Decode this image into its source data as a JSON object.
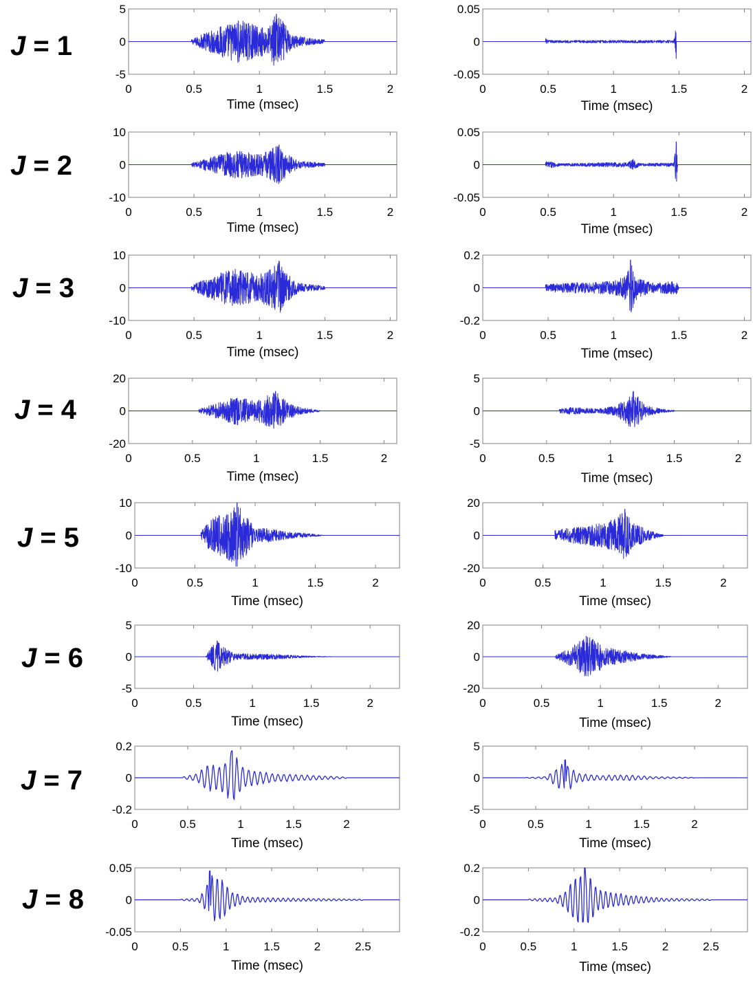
{
  "figure": {
    "line_color": "#2a2ad8",
    "axis_color": "#808080",
    "background": "#ffffff"
  },
  "chart_data": [
    {
      "type": "line",
      "row_label": "J = 1",
      "column": "left",
      "xlabel": "Time (msec)",
      "xlim": [
        0,
        2.05
      ],
      "ylim": [
        -5,
        5
      ],
      "x_ticks": [
        "0",
        "0.5",
        "1",
        "1.5",
        "2"
      ],
      "y_ticks": [
        "5",
        "0",
        "-5"
      ],
      "waveform": {
        "start": 0.48,
        "end": 1.5,
        "peak_time": 1.13,
        "peak_amplitude": 4.2,
        "envelope": [
          [
            0.48,
            0.3
          ],
          [
            0.55,
            1.0
          ],
          [
            0.7,
            2.4
          ],
          [
            0.85,
            3.4
          ],
          [
            1.0,
            2.3
          ],
          [
            1.07,
            2.2
          ],
          [
            1.12,
            4.2
          ],
          [
            1.18,
            3.2
          ],
          [
            1.25,
            1.1
          ],
          [
            1.4,
            0.45
          ],
          [
            1.5,
            0.3
          ]
        ]
      }
    },
    {
      "type": "line",
      "row_label": "J = 1",
      "column": "right",
      "xlabel": "Time (msec)",
      "xlim": [
        0,
        2.05
      ],
      "ylim": [
        -0.05,
        0.05
      ],
      "x_ticks": [
        "0",
        "0.5",
        "1",
        "1.5",
        "2"
      ],
      "y_ticks": [
        "0.05",
        "0",
        "-0.05"
      ],
      "waveform": {
        "start": 0.48,
        "end": 1.48,
        "peak_time": 1.48,
        "peak_amplitude": -0.026,
        "envelope": [
          [
            0.48,
            0.006
          ],
          [
            0.5,
            0.002
          ],
          [
            1.46,
            0.002
          ],
          [
            1.48,
            0.026
          ],
          [
            1.49,
            0.0
          ]
        ]
      }
    },
    {
      "type": "line",
      "row_label": "J = 2",
      "column": "left",
      "xlabel": "Time (msec)",
      "xlim": [
        0,
        2.05
      ],
      "ylim": [
        -10,
        10
      ],
      "x_ticks": [
        "0",
        "0.5",
        "1",
        "1.5",
        "2"
      ],
      "y_ticks": [
        "10",
        "0",
        "-10"
      ],
      "waveform": {
        "start": 0.48,
        "end": 1.5,
        "peak_time": 1.15,
        "peak_amplitude": 6.0,
        "envelope": [
          [
            0.48,
            0.5
          ],
          [
            0.6,
            2.0
          ],
          [
            0.8,
            4.5
          ],
          [
            1.0,
            3.2
          ],
          [
            1.15,
            6.0
          ],
          [
            1.22,
            3.0
          ],
          [
            1.3,
            1.2
          ],
          [
            1.5,
            0.5
          ]
        ]
      }
    },
    {
      "type": "line",
      "row_label": "J = 2",
      "column": "right",
      "xlabel": "Time (msec)",
      "xlim": [
        0,
        2.05
      ],
      "ylim": [
        -0.05,
        0.05
      ],
      "x_ticks": [
        "0",
        "0.5",
        "1",
        "1.5",
        "2"
      ],
      "y_ticks": [
        "0.05",
        "0",
        "-0.05"
      ],
      "waveform": {
        "start": 0.48,
        "end": 1.5,
        "peak_time": 1.48,
        "peak_amplitude": 0.035,
        "envelope": [
          [
            0.48,
            0.006
          ],
          [
            0.6,
            0.002
          ],
          [
            1.1,
            0.004
          ],
          [
            1.15,
            0.009
          ],
          [
            1.2,
            0.002
          ],
          [
            1.46,
            0.003
          ],
          [
            1.48,
            0.035
          ],
          [
            1.49,
            0.0
          ]
        ]
      }
    },
    {
      "type": "line",
      "row_label": "J = 3",
      "column": "left",
      "xlabel": "Time (msec)",
      "xlim": [
        0,
        2.05
      ],
      "ylim": [
        -10,
        10
      ],
      "x_ticks": [
        "0",
        "0.5",
        "1",
        "1.5",
        "2"
      ],
      "y_ticks": [
        "10",
        "0",
        "-10"
      ],
      "waveform": {
        "start": 0.48,
        "end": 1.5,
        "peak_time": 1.15,
        "peak_amplitude": 8.2,
        "envelope": [
          [
            0.48,
            0.8
          ],
          [
            0.6,
            3.0
          ],
          [
            0.8,
            6.0
          ],
          [
            1.0,
            4.0
          ],
          [
            1.15,
            8.2
          ],
          [
            1.22,
            4.0
          ],
          [
            1.3,
            1.5
          ],
          [
            1.5,
            0.5
          ]
        ]
      }
    },
    {
      "type": "line",
      "row_label": "J = 3",
      "column": "right",
      "xlabel": "Time (msec)",
      "xlim": [
        0,
        2.05
      ],
      "ylim": [
        -0.2,
        0.2
      ],
      "x_ticks": [
        "0",
        "0.5",
        "1",
        "1.5",
        "2"
      ],
      "y_ticks": [
        "0.2",
        "0",
        "-0.2"
      ],
      "waveform": {
        "start": 0.48,
        "end": 1.5,
        "peak_time": 1.13,
        "peak_amplitude": 0.17,
        "envelope": [
          [
            0.48,
            0.02
          ],
          [
            0.6,
            0.03
          ],
          [
            1.0,
            0.04
          ],
          [
            1.1,
            0.08
          ],
          [
            1.13,
            0.17
          ],
          [
            1.18,
            0.06
          ],
          [
            1.3,
            0.03
          ],
          [
            1.48,
            0.04
          ],
          [
            1.5,
            0.0
          ]
        ]
      }
    },
    {
      "type": "line",
      "row_label": "J = 4",
      "column": "left",
      "xlabel": "Time (msec)",
      "xlim": [
        0,
        2.1
      ],
      "ylim": [
        -20,
        20
      ],
      "x_ticks": [
        "0",
        "0.5",
        "1",
        "1.5",
        "2"
      ],
      "y_ticks": [
        "20",
        "0",
        "-20"
      ],
      "waveform": {
        "start": 0.55,
        "end": 1.5,
        "peak_time": 1.15,
        "peak_amplitude": 12,
        "envelope": [
          [
            0.55,
            1.0
          ],
          [
            0.7,
            5.0
          ],
          [
            0.85,
            9.0
          ],
          [
            1.0,
            6.0
          ],
          [
            1.15,
            12.0
          ],
          [
            1.25,
            5.0
          ],
          [
            1.35,
            2.0
          ],
          [
            1.5,
            0.5
          ]
        ]
      }
    },
    {
      "type": "line",
      "row_label": "J = 4",
      "column": "right",
      "xlabel": "Time (msec)",
      "xlim": [
        0,
        2.1
      ],
      "ylim": [
        -5,
        5
      ],
      "x_ticks": [
        "0",
        "0.5",
        "1",
        "1.5",
        "2"
      ],
      "y_ticks": [
        "5",
        "0",
        "-5"
      ],
      "waveform": {
        "start": 0.6,
        "end": 1.5,
        "peak_time": 1.18,
        "peak_amplitude": 3.0,
        "envelope": [
          [
            0.6,
            0.3
          ],
          [
            0.7,
            0.6
          ],
          [
            0.9,
            0.3
          ],
          [
            1.05,
            0.8
          ],
          [
            1.18,
            3.0
          ],
          [
            1.28,
            0.8
          ],
          [
            1.4,
            0.3
          ],
          [
            1.5,
            0.1
          ]
        ]
      }
    },
    {
      "type": "line",
      "row_label": "J = 5",
      "column": "left",
      "xlabel": "Time (msec)",
      "xlim": [
        0,
        2.2
      ],
      "ylim": [
        -10,
        10
      ],
      "x_ticks": [
        "0",
        "0.5",
        "1",
        "1.5",
        "2"
      ],
      "y_ticks": [
        "10",
        "0",
        "-10"
      ],
      "waveform": {
        "start": 0.55,
        "end": 1.55,
        "peak_time": 0.85,
        "peak_amplitude": 10,
        "envelope": [
          [
            0.55,
            1.0
          ],
          [
            0.62,
            5.0
          ],
          [
            0.8,
            8.0
          ],
          [
            0.85,
            10.0
          ],
          [
            0.95,
            5.0
          ],
          [
            1.0,
            2.0
          ],
          [
            1.1,
            2.2
          ],
          [
            1.3,
            1.0
          ],
          [
            1.55,
            0.2
          ]
        ]
      }
    },
    {
      "type": "line",
      "row_label": "J = 5",
      "column": "right",
      "xlabel": "Time (msec)",
      "xlim": [
        0,
        2.2
      ],
      "ylim": [
        -20,
        20
      ],
      "x_ticks": [
        "0",
        "0.5",
        "1",
        "1.5",
        "2"
      ],
      "y_ticks": [
        "20",
        "0",
        "-20"
      ],
      "waveform": {
        "start": 0.6,
        "end": 1.5,
        "peak_time": 1.18,
        "peak_amplitude": 16,
        "envelope": [
          [
            0.6,
            3.0
          ],
          [
            0.75,
            5.0
          ],
          [
            0.95,
            7.0
          ],
          [
            1.1,
            10.0
          ],
          [
            1.18,
            16.0
          ],
          [
            1.25,
            8.0
          ],
          [
            1.35,
            4.0
          ],
          [
            1.5,
            0.5
          ]
        ]
      }
    },
    {
      "type": "line",
      "row_label": "J = 6",
      "column": "left",
      "xlabel": "Time (msec)",
      "xlim": [
        0,
        2.25
      ],
      "ylim": [
        -5,
        5
      ],
      "x_ticks": [
        "0",
        "0.5",
        "1",
        "1.5",
        "2"
      ],
      "y_ticks": [
        "5",
        "0",
        "-5"
      ],
      "waveform": {
        "start": 0.6,
        "end": 1.7,
        "peak_time": 0.7,
        "peak_amplitude": 2.5,
        "envelope": [
          [
            0.6,
            0.0
          ],
          [
            0.65,
            1.6
          ],
          [
            0.7,
            2.5
          ],
          [
            0.75,
            1.6
          ],
          [
            0.85,
            0.5
          ],
          [
            1.2,
            0.4
          ],
          [
            1.5,
            0.1
          ],
          [
            1.7,
            0.0
          ]
        ]
      }
    },
    {
      "type": "line",
      "row_label": "J = 6",
      "column": "right",
      "xlabel": "Time (msec)",
      "xlim": [
        0,
        2.25
      ],
      "ylim": [
        -20,
        20
      ],
      "x_ticks": [
        "0",
        "0.5",
        "1",
        "1.5",
        "2"
      ],
      "y_ticks": [
        "20",
        "0",
        "-20"
      ],
      "waveform": {
        "start": 0.62,
        "end": 1.6,
        "peak_time": 0.88,
        "peak_amplitude": 13,
        "envelope": [
          [
            0.62,
            1.0
          ],
          [
            0.75,
            6.0
          ],
          [
            0.88,
            13.0
          ],
          [
            0.97,
            10.0
          ],
          [
            1.05,
            6.0
          ],
          [
            1.2,
            4.0
          ],
          [
            1.35,
            2.0
          ],
          [
            1.6,
            0.2
          ]
        ]
      }
    },
    {
      "type": "line",
      "row_label": "J = 7",
      "column": "left",
      "xlabel": "Time (msec)",
      "xlim": [
        0,
        2.5
      ],
      "ylim": [
        -0.2,
        0.2
      ],
      "x_ticks": [
        "0",
        "0.5",
        "1",
        "1.5",
        "2"
      ],
      "y_ticks": [
        "0.2",
        "0",
        "-0.2"
      ],
      "waveform": {
        "start": 0.45,
        "end": 2.0,
        "peak_time": 0.92,
        "peak_amplitude": 0.17,
        "envelope": [
          [
            0.45,
            0.005
          ],
          [
            0.6,
            0.03
          ],
          [
            0.68,
            0.09
          ],
          [
            0.8,
            0.08
          ],
          [
            0.92,
            0.17
          ],
          [
            1.05,
            0.06
          ],
          [
            1.3,
            0.03
          ],
          [
            1.7,
            0.015
          ],
          [
            2.0,
            0.005
          ]
        ]
      }
    },
    {
      "type": "line",
      "row_label": "J = 7",
      "column": "right",
      "xlabel": "Time (msec)",
      "xlim": [
        0,
        2.5
      ],
      "ylim": [
        -5,
        5
      ],
      "x_ticks": [
        "0",
        "0.5",
        "1",
        "1.5",
        "2"
      ],
      "y_ticks": [
        "5",
        "0",
        "-5"
      ],
      "waveform": {
        "start": 0.4,
        "end": 2.0,
        "peak_time": 0.78,
        "peak_amplitude": 2.8,
        "envelope": [
          [
            0.4,
            0.05
          ],
          [
            0.6,
            0.2
          ],
          [
            0.78,
            2.8
          ],
          [
            0.88,
            0.8
          ],
          [
            1.1,
            0.4
          ],
          [
            1.35,
            0.5
          ],
          [
            1.6,
            0.2
          ],
          [
            2.0,
            0.05
          ]
        ]
      }
    },
    {
      "type": "line",
      "row_label": "J = 8",
      "column": "left",
      "xlabel": "Time (msec)",
      "xlim": [
        0,
        2.9
      ],
      "ylim": [
        -0.05,
        0.05
      ],
      "x_ticks": [
        "0",
        "0.5",
        "1",
        "1.5",
        "2",
        "2.5"
      ],
      "y_ticks": [
        "0.05",
        "0",
        "-0.05"
      ],
      "waveform": {
        "start": 0.5,
        "end": 2.5,
        "peak_time": 0.82,
        "peak_amplitude": 0.045,
        "envelope": [
          [
            0.5,
            0.001
          ],
          [
            0.7,
            0.003
          ],
          [
            0.76,
            0.015
          ],
          [
            0.82,
            0.045
          ],
          [
            0.95,
            0.035
          ],
          [
            1.05,
            0.015
          ],
          [
            1.2,
            0.005
          ],
          [
            1.6,
            0.003
          ],
          [
            2.5,
            0.001
          ]
        ]
      }
    },
    {
      "type": "line",
      "row_label": "J = 8",
      "column": "right",
      "xlabel": "Time (msec)",
      "xlim": [
        0,
        2.9
      ],
      "ylim": [
        -0.2,
        0.2
      ],
      "x_ticks": [
        "0",
        "0.5",
        "1",
        "1.5",
        "2",
        "2.5"
      ],
      "y_ticks": [
        "0.2",
        "0",
        "-0.2"
      ],
      "waveform": {
        "start": 0.5,
        "end": 2.5,
        "peak_time": 1.12,
        "peak_amplitude": 0.2,
        "envelope": [
          [
            0.5,
            0.005
          ],
          [
            0.8,
            0.015
          ],
          [
            0.9,
            0.06
          ],
          [
            1.0,
            0.15
          ],
          [
            1.12,
            0.2
          ],
          [
            1.25,
            0.08
          ],
          [
            1.4,
            0.05
          ],
          [
            1.7,
            0.025
          ],
          [
            2.0,
            0.01
          ],
          [
            2.5,
            0.005
          ]
        ]
      }
    }
  ]
}
